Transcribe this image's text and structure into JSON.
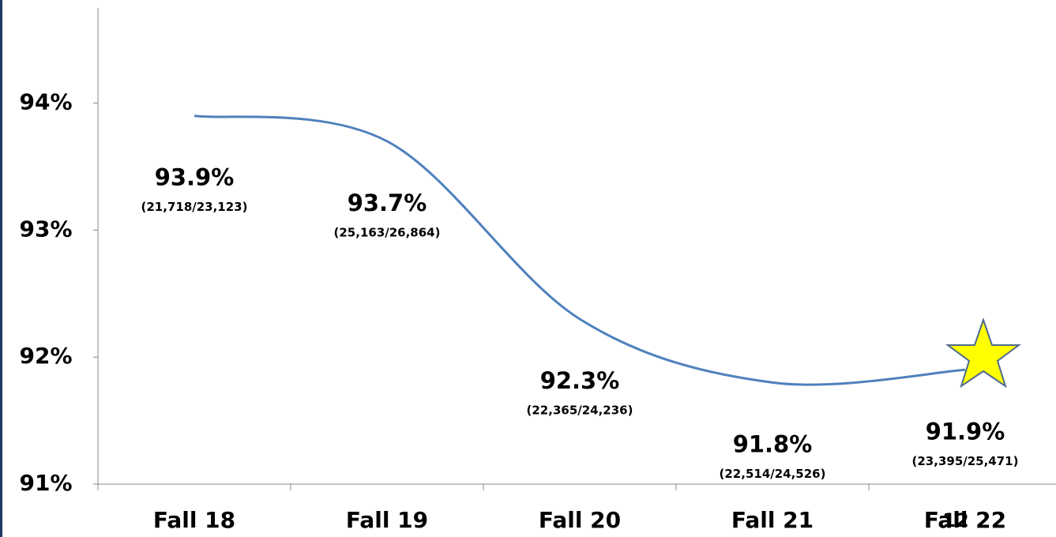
{
  "chart_data": {
    "type": "line",
    "categories": [
      "Fall 18",
      "Fall 19",
      "Fall 20",
      "Fall 21",
      "Fall 22"
    ],
    "values": [
      93.9,
      93.7,
      92.3,
      91.8,
      91.9
    ],
    "value_labels": [
      "93.9%",
      "93.7%",
      "92.3%",
      "91.8%",
      "91.9%"
    ],
    "sublabels": [
      "(21,718/23,123)",
      "(25,163/26,864)",
      "(22,365/24,236)",
      "(22,514/24,526)",
      "(23,395/25,471)"
    ],
    "color": "#4f81bd",
    "ylim": [
      91,
      94.75
    ],
    "yticks": [
      {
        "value": 91,
        "label": "91%"
      },
      {
        "value": 92,
        "label": "92%"
      },
      {
        "value": 93,
        "label": "93%"
      },
      {
        "value": 94,
        "label": "94%"
      }
    ],
    "page_number": "12"
  }
}
